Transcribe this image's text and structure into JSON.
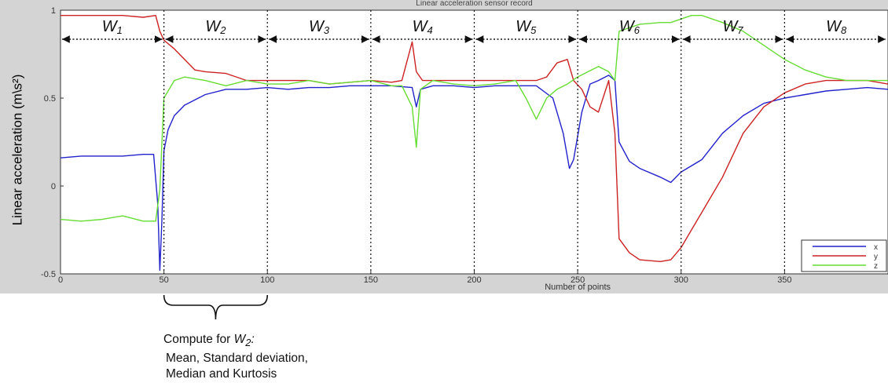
{
  "chart_data": {
    "type": "line",
    "title": "Linear acceleration sensor record",
    "xlabel": "Number of points",
    "ylabel": "Linear acceleration (m\\s²)",
    "xlim": [
      0,
      400
    ],
    "ylim": [
      -0.5,
      1
    ],
    "x_ticks": [
      0,
      50,
      100,
      150,
      200,
      250,
      300,
      350
    ],
    "y_ticks": [
      -0.5,
      0,
      0.5,
      1
    ],
    "y_tick_labels": [
      "-0.5",
      "0",
      "0.5",
      "1"
    ],
    "grid": false,
    "legend_position": "bottom-right",
    "series": [
      {
        "name": "x",
        "color": "#2222cc",
        "points": [
          [
            0,
            0.16
          ],
          [
            10,
            0.17
          ],
          [
            20,
            0.17
          ],
          [
            30,
            0.17
          ],
          [
            40,
            0.18
          ],
          [
            45,
            0.18
          ],
          [
            47,
            -0.1
          ],
          [
            48,
            -0.48
          ],
          [
            49,
            -0.2
          ],
          [
            50,
            0.2
          ],
          [
            52,
            0.32
          ],
          [
            55,
            0.4
          ],
          [
            60,
            0.46
          ],
          [
            70,
            0.52
          ],
          [
            80,
            0.55
          ],
          [
            90,
            0.55
          ],
          [
            100,
            0.56
          ],
          [
            110,
            0.55
          ],
          [
            120,
            0.56
          ],
          [
            130,
            0.56
          ],
          [
            140,
            0.57
          ],
          [
            150,
            0.57
          ],
          [
            160,
            0.57
          ],
          [
            170,
            0.56
          ],
          [
            172,
            0.45
          ],
          [
            174,
            0.55
          ],
          [
            180,
            0.57
          ],
          [
            190,
            0.57
          ],
          [
            200,
            0.56
          ],
          [
            210,
            0.57
          ],
          [
            220,
            0.57
          ],
          [
            230,
            0.57
          ],
          [
            238,
            0.5
          ],
          [
            243,
            0.3
          ],
          [
            246,
            0.1
          ],
          [
            248,
            0.15
          ],
          [
            252,
            0.42
          ],
          [
            256,
            0.58
          ],
          [
            260,
            0.6
          ],
          [
            265,
            0.63
          ],
          [
            268,
            0.6
          ],
          [
            270,
            0.25
          ],
          [
            275,
            0.14
          ],
          [
            280,
            0.1
          ],
          [
            290,
            0.05
          ],
          [
            295,
            0.02
          ],
          [
            300,
            0.08
          ],
          [
            310,
            0.15
          ],
          [
            320,
            0.3
          ],
          [
            330,
            0.4
          ],
          [
            340,
            0.47
          ],
          [
            350,
            0.5
          ],
          [
            360,
            0.52
          ],
          [
            370,
            0.54
          ],
          [
            380,
            0.55
          ],
          [
            390,
            0.56
          ],
          [
            400,
            0.55
          ]
        ]
      },
      {
        "name": "y",
        "color": "#cc2222",
        "points": [
          [
            0,
            0.97
          ],
          [
            10,
            0.97
          ],
          [
            20,
            0.97
          ],
          [
            30,
            0.97
          ],
          [
            40,
            0.96
          ],
          [
            46,
            0.97
          ],
          [
            48,
            0.88
          ],
          [
            50,
            0.83
          ],
          [
            55,
            0.78
          ],
          [
            60,
            0.72
          ],
          [
            65,
            0.66
          ],
          [
            70,
            0.65
          ],
          [
            80,
            0.64
          ],
          [
            90,
            0.6
          ],
          [
            100,
            0.6
          ],
          [
            110,
            0.6
          ],
          [
            120,
            0.6
          ],
          [
            130,
            0.58
          ],
          [
            140,
            0.59
          ],
          [
            150,
            0.6
          ],
          [
            160,
            0.59
          ],
          [
            165,
            0.6
          ],
          [
            170,
            0.82
          ],
          [
            172,
            0.65
          ],
          [
            175,
            0.6
          ],
          [
            180,
            0.6
          ],
          [
            190,
            0.6
          ],
          [
            200,
            0.6
          ],
          [
            210,
            0.6
          ],
          [
            220,
            0.6
          ],
          [
            230,
            0.6
          ],
          [
            235,
            0.62
          ],
          [
            240,
            0.7
          ],
          [
            245,
            0.72
          ],
          [
            248,
            0.6
          ],
          [
            252,
            0.55
          ],
          [
            256,
            0.45
          ],
          [
            260,
            0.42
          ],
          [
            265,
            0.6
          ],
          [
            268,
            0.3
          ],
          [
            270,
            -0.3
          ],
          [
            275,
            -0.38
          ],
          [
            280,
            -0.42
          ],
          [
            290,
            -0.43
          ],
          [
            295,
            -0.42
          ],
          [
            300,
            -0.35
          ],
          [
            305,
            -0.25
          ],
          [
            310,
            -0.15
          ],
          [
            320,
            0.05
          ],
          [
            330,
            0.3
          ],
          [
            340,
            0.45
          ],
          [
            350,
            0.53
          ],
          [
            360,
            0.58
          ],
          [
            370,
            0.6
          ],
          [
            380,
            0.6
          ],
          [
            390,
            0.6
          ],
          [
            400,
            0.58
          ]
        ]
      },
      {
        "name": "z",
        "color": "#66dd33",
        "points": [
          [
            0,
            -0.19
          ],
          [
            10,
            -0.2
          ],
          [
            20,
            -0.19
          ],
          [
            30,
            -0.17
          ],
          [
            40,
            -0.2
          ],
          [
            46,
            -0.2
          ],
          [
            48,
            -0.02
          ],
          [
            50,
            0.5
          ],
          [
            55,
            0.6
          ],
          [
            60,
            0.62
          ],
          [
            70,
            0.6
          ],
          [
            80,
            0.57
          ],
          [
            90,
            0.6
          ],
          [
            100,
            0.58
          ],
          [
            110,
            0.58
          ],
          [
            120,
            0.6
          ],
          [
            130,
            0.58
          ],
          [
            140,
            0.59
          ],
          [
            150,
            0.6
          ],
          [
            160,
            0.57
          ],
          [
            165,
            0.57
          ],
          [
            170,
            0.45
          ],
          [
            172,
            0.22
          ],
          [
            174,
            0.55
          ],
          [
            180,
            0.6
          ],
          [
            190,
            0.58
          ],
          [
            200,
            0.57
          ],
          [
            210,
            0.58
          ],
          [
            220,
            0.6
          ],
          [
            225,
            0.5
          ],
          [
            230,
            0.38
          ],
          [
            235,
            0.5
          ],
          [
            240,
            0.55
          ],
          [
            245,
            0.58
          ],
          [
            250,
            0.62
          ],
          [
            255,
            0.65
          ],
          [
            260,
            0.68
          ],
          [
            265,
            0.65
          ],
          [
            268,
            0.6
          ],
          [
            270,
            0.88
          ],
          [
            275,
            0.9
          ],
          [
            280,
            0.92
          ],
          [
            290,
            0.93
          ],
          [
            295,
            0.93
          ],
          [
            300,
            0.95
          ],
          [
            305,
            0.97
          ],
          [
            310,
            0.97
          ],
          [
            315,
            0.95
          ],
          [
            320,
            0.93
          ],
          [
            330,
            0.88
          ],
          [
            340,
            0.8
          ],
          [
            350,
            0.72
          ],
          [
            360,
            0.66
          ],
          [
            370,
            0.62
          ],
          [
            380,
            0.6
          ],
          [
            390,
            0.6
          ],
          [
            400,
            0.6
          ]
        ]
      }
    ],
    "windows": [
      {
        "letter": "W",
        "sub": "1",
        "start": 0,
        "end": 50
      },
      {
        "letter": "W",
        "sub": "2",
        "start": 50,
        "end": 100
      },
      {
        "letter": "W",
        "sub": "3",
        "start": 100,
        "end": 150
      },
      {
        "letter": "W",
        "sub": "4",
        "start": 150,
        "end": 200
      },
      {
        "letter": "W",
        "sub": "5",
        "start": 200,
        "end": 250
      },
      {
        "letter": "W",
        "sub": "6",
        "start": 250,
        "end": 300
      },
      {
        "letter": "W",
        "sub": "7",
        "start": 300,
        "end": 350
      },
      {
        "letter": "W",
        "sub": "8",
        "start": 350,
        "end": 400
      }
    ],
    "brace_range": [
      50,
      100
    ]
  },
  "annotation": {
    "line1_prefix": "Compute for ",
    "line1_letter": "W",
    "line1_sub": "2",
    "line1_suffix": ":",
    "line2": "Mean, Standard deviation,",
    "line3": "Median and Kurtosis"
  },
  "colors": {
    "figure_background": "#d4d4d4",
    "plot_background": "#ffffff"
  }
}
